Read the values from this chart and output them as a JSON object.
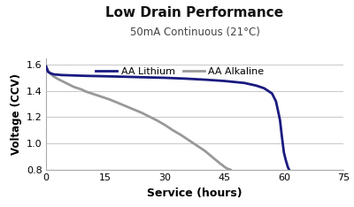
{
  "title": "Low Drain Performance",
  "subtitle": "50mA Continuous (21°C)",
  "xlabel": "Service (hours)",
  "ylabel": "Voltage (CCV)",
  "xlim": [
    0,
    75
  ],
  "ylim": [
    0.8,
    1.65
  ],
  "yticks": [
    0.8,
    1.0,
    1.2,
    1.4,
    1.6
  ],
  "xticks": [
    0,
    15,
    30,
    45,
    60,
    75
  ],
  "background_color": "#ffffff",
  "grid_color": "#cccccc",
  "lithium_color": "#1a1a80",
  "alkaline_color": "#999999",
  "lithium_label": "AA Lithium",
  "alkaline_label": "AA Alkaline",
  "lithium_x": [
    0,
    0.5,
    1,
    2,
    4,
    6,
    8,
    10,
    13,
    16,
    20,
    25,
    30,
    35,
    40,
    45,
    50,
    53,
    55,
    57,
    58,
    59,
    59.5,
    60,
    60.5,
    61,
    61.3
  ],
  "lithium_y": [
    1.585,
    1.545,
    1.535,
    1.525,
    1.52,
    1.518,
    1.516,
    1.514,
    1.512,
    1.51,
    1.507,
    1.503,
    1.499,
    1.493,
    1.485,
    1.475,
    1.46,
    1.44,
    1.42,
    1.38,
    1.32,
    1.18,
    1.05,
    0.93,
    0.87,
    0.82,
    0.8
  ],
  "alkaline_x": [
    0,
    0.5,
    1,
    1.5,
    2,
    3,
    4,
    5,
    6,
    7,
    8,
    9,
    10,
    12,
    14,
    16,
    18,
    20,
    22,
    24,
    26,
    28,
    30,
    32,
    34,
    36,
    38,
    40,
    41,
    42,
    43,
    44,
    44.5,
    45,
    45.5,
    46,
    46.5
  ],
  "alkaline_y": [
    1.59,
    1.555,
    1.535,
    1.52,
    1.508,
    1.49,
    1.475,
    1.46,
    1.445,
    1.43,
    1.42,
    1.41,
    1.395,
    1.375,
    1.355,
    1.335,
    1.31,
    1.285,
    1.26,
    1.235,
    1.205,
    1.175,
    1.14,
    1.1,
    1.065,
    1.025,
    0.985,
    0.945,
    0.92,
    0.895,
    0.87,
    0.845,
    0.835,
    0.822,
    0.812,
    0.805,
    0.8
  ]
}
